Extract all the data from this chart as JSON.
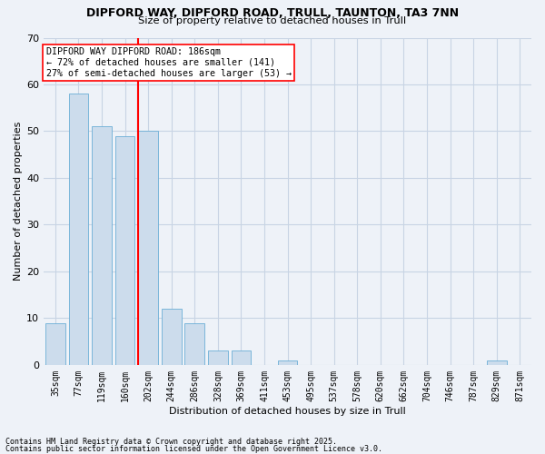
{
  "title1": "DIPFORD WAY, DIPFORD ROAD, TRULL, TAUNTON, TA3 7NN",
  "title2": "Size of property relative to detached houses in Trull",
  "xlabel": "Distribution of detached houses by size in Trull",
  "ylabel": "Number of detached properties",
  "bar_labels": [
    "35sqm",
    "77sqm",
    "119sqm",
    "160sqm",
    "202sqm",
    "244sqm",
    "286sqm",
    "328sqm",
    "369sqm",
    "411sqm",
    "453sqm",
    "495sqm",
    "537sqm",
    "578sqm",
    "620sqm",
    "662sqm",
    "704sqm",
    "746sqm",
    "787sqm",
    "829sqm",
    "871sqm"
  ],
  "bar_values": [
    9,
    58,
    51,
    49,
    50,
    12,
    9,
    3,
    3,
    0,
    1,
    0,
    0,
    0,
    0,
    0,
    0,
    0,
    0,
    1,
    0
  ],
  "bar_color": "#ccdcec",
  "bar_edge_color": "#6baed6",
  "grid_color": "#c8d4e4",
  "vline_x": 3.57,
  "vline_color": "red",
  "annotation_text": "DIPFORD WAY DIPFORD ROAD: 186sqm\n← 72% of detached houses are smaller (141)\n27% of semi-detached houses are larger (53) →",
  "annotation_box_color": "white",
  "annotation_box_edge": "red",
  "ylim": [
    0,
    70
  ],
  "yticks": [
    0,
    10,
    20,
    30,
    40,
    50,
    60,
    70
  ],
  "footer1": "Contains HM Land Registry data © Crown copyright and database right 2025.",
  "footer2": "Contains public sector information licensed under the Open Government Licence v3.0.",
  "bg_color": "#eef2f8"
}
